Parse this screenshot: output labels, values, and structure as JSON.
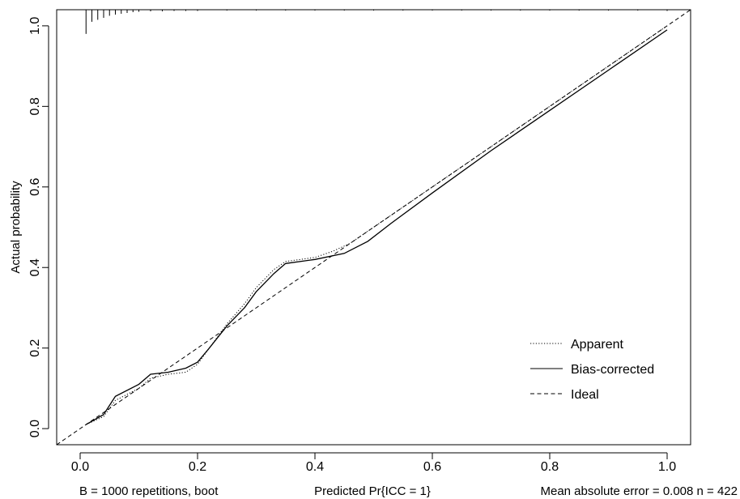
{
  "chart_data": {
    "type": "line",
    "title": "",
    "xlabel": "Predicted Pr{ICC = 1}",
    "ylabel": "Actual probability",
    "xlim": [
      -0.04,
      1.04
    ],
    "ylim": [
      -0.04,
      1.04
    ],
    "x_ticks": [
      0.0,
      0.2,
      0.4,
      0.6,
      0.8,
      1.0
    ],
    "x_tick_labels": [
      "0.0",
      "0.2",
      "0.4",
      "0.6",
      "0.8",
      "1.0"
    ],
    "y_ticks": [
      0.0,
      0.2,
      0.4,
      0.6,
      0.8,
      1.0
    ],
    "y_tick_labels": [
      "0.0",
      "0.2",
      "0.4",
      "0.6",
      "0.8",
      "1.0"
    ],
    "grid": false,
    "legend_position": "bottom-right",
    "series": [
      {
        "name": "Apparent",
        "style": "dotted",
        "x": [
          0.01,
          0.04,
          0.06,
          0.1,
          0.12,
          0.15,
          0.18,
          0.2,
          0.22,
          0.25,
          0.28,
          0.3,
          0.33,
          0.35,
          0.4,
          0.43,
          0.46,
          0.5,
          0.6,
          0.7,
          0.8,
          0.9,
          1.0
        ],
        "y": [
          0.01,
          0.03,
          0.07,
          0.1,
          0.125,
          0.135,
          0.14,
          0.16,
          0.2,
          0.26,
          0.31,
          0.35,
          0.395,
          0.415,
          0.425,
          0.44,
          0.46,
          0.5,
          0.6,
          0.7,
          0.8,
          0.9,
          1.0
        ]
      },
      {
        "name": "Bias-corrected",
        "style": "solid",
        "x": [
          0.01,
          0.04,
          0.06,
          0.1,
          0.12,
          0.15,
          0.18,
          0.2,
          0.22,
          0.25,
          0.28,
          0.3,
          0.33,
          0.35,
          0.4,
          0.45,
          0.49,
          0.53,
          0.6,
          0.7,
          0.8,
          0.9,
          1.0
        ],
        "y": [
          0.01,
          0.035,
          0.08,
          0.11,
          0.135,
          0.14,
          0.15,
          0.165,
          0.2,
          0.255,
          0.3,
          0.34,
          0.385,
          0.41,
          0.42,
          0.435,
          0.465,
          0.51,
          0.585,
          0.69,
          0.79,
          0.89,
          0.99
        ]
      },
      {
        "name": "Ideal",
        "style": "dashed",
        "x": [
          -0.04,
          1.04
        ],
        "y": [
          -0.04,
          1.04
        ]
      }
    ],
    "rug": {
      "x": [
        0.01,
        0.02,
        0.03,
        0.04,
        0.05,
        0.06,
        0.07,
        0.08,
        0.09,
        0.1,
        0.12,
        0.14,
        0.16,
        0.18,
        0.2,
        0.25,
        0.3,
        0.35,
        0.4,
        0.45,
        0.5,
        0.55,
        0.6,
        0.65,
        0.7,
        0.75,
        0.8,
        0.85,
        0.9,
        0.95,
        1.0
      ],
      "length": [
        0.06,
        0.03,
        0.025,
        0.02,
        0.015,
        0.012,
        0.01,
        0.008,
        0.006,
        0.005,
        0.004,
        0.004,
        0.003,
        0.003,
        0.003,
        0.002,
        0.002,
        0.002,
        0.002,
        0.002,
        0.002,
        0.002,
        0.002,
        0.002,
        0.002,
        0.002,
        0.002,
        0.002,
        0.002,
        0.002,
        0.003
      ]
    }
  },
  "footer": {
    "left": "B = 1000 repetitions, boot",
    "center": "Predicted Pr{ICC = 1}",
    "right": "Mean absolute error = 0.008 n = 422"
  }
}
